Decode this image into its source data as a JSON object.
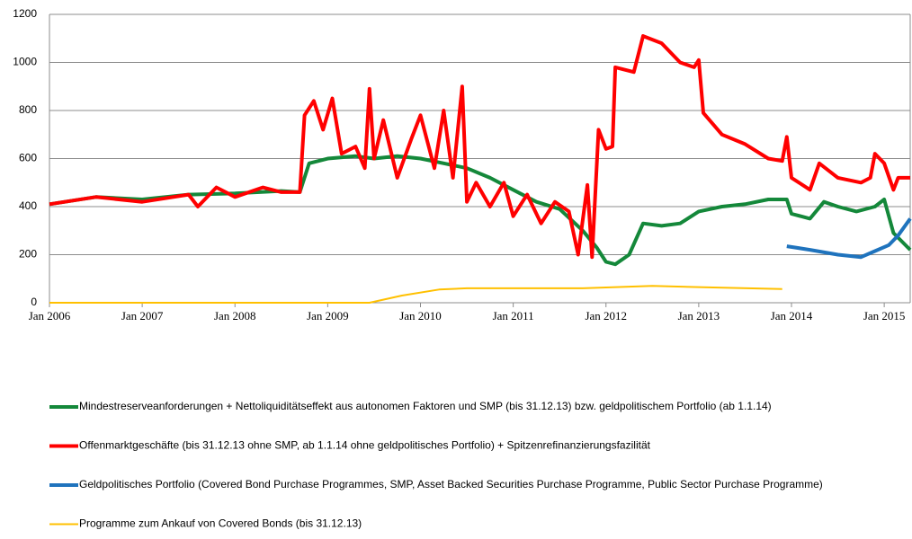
{
  "chart_data": {
    "type": "line",
    "xlim": [
      2006,
      2015.28
    ],
    "xticks": [
      {
        "value": 2006,
        "label": "Jan 2006"
      },
      {
        "value": 2007,
        "label": "Jan 2007"
      },
      {
        "value": 2008,
        "label": "Jan 2008"
      },
      {
        "value": 2009,
        "label": "Jan 2009"
      },
      {
        "value": 2010,
        "label": "Jan 2010"
      },
      {
        "value": 2011,
        "label": "Jan 2011"
      },
      {
        "value": 2012,
        "label": "Jan 2012"
      },
      {
        "value": 2013,
        "label": "Jan 2013"
      },
      {
        "value": 2014,
        "label": "Jan 2014"
      },
      {
        "value": 2015,
        "label": "Jan 2015"
      }
    ],
    "ylim": [
      0,
      1200
    ],
    "yticks": [
      0,
      200,
      400,
      600,
      800,
      1000,
      1200
    ],
    "grid": true,
    "series": [
      {
        "name": "Mindestreserveanforderungen + Nettoliquiditätseffekt aus autonomen Faktoren und SMP (bis 31.12.13) bzw. geldpolitischem Portfolio (ab 1.1.14)",
        "color": "#14883a",
        "x": [
          2006,
          2006.5,
          2007,
          2007.5,
          2008,
          2008.5,
          2008.7,
          2008.8,
          2009,
          2009.3,
          2009.5,
          2009.75,
          2010,
          2010.25,
          2010.5,
          2010.75,
          2011,
          2011.25,
          2011.5,
          2011.75,
          2011.9,
          2012,
          2012.1,
          2012.25,
          2012.4,
          2012.6,
          2012.8,
          2013,
          2013.25,
          2013.5,
          2013.75,
          2013.95,
          2014,
          2014.2,
          2014.35,
          2014.5,
          2014.7,
          2014.9,
          2015,
          2015.1,
          2015.28
        ],
        "values": [
          410,
          440,
          430,
          450,
          455,
          465,
          460,
          580,
          600,
          610,
          600,
          610,
          600,
          580,
          560,
          520,
          470,
          420,
          390,
          300,
          230,
          170,
          160,
          200,
          330,
          320,
          330,
          380,
          400,
          410,
          430,
          430,
          370,
          350,
          420,
          400,
          380,
          400,
          430,
          290,
          220
        ]
      },
      {
        "name": "Offenmarktgeschäfte (bis 31.12.13 ohne SMP, ab 1.1.14 ohne geldpolitisches Portfolio) + Spitzenrefinanzierungsfazilität",
        "color": "#ff0000",
        "x": [
          2006,
          2006.5,
          2007,
          2007.5,
          2007.6,
          2007.8,
          2008,
          2008.3,
          2008.5,
          2008.7,
          2008.75,
          2008.85,
          2008.95,
          2009.05,
          2009.15,
          2009.3,
          2009.4,
          2009.45,
          2009.5,
          2009.6,
          2009.75,
          2009.9,
          2010,
          2010.15,
          2010.25,
          2010.35,
          2010.45,
          2010.5,
          2010.6,
          2010.75,
          2010.9,
          2011,
          2011.15,
          2011.3,
          2011.45,
          2011.6,
          2011.7,
          2011.8,
          2011.85,
          2011.92,
          2012,
          2012.07,
          2012.1,
          2012.3,
          2012.4,
          2012.6,
          2012.8,
          2012.95,
          2013,
          2013.05,
          2013.25,
          2013.5,
          2013.75,
          2013.9,
          2013.95,
          2014,
          2014.2,
          2014.3,
          2014.5,
          2014.75,
          2014.85,
          2014.9,
          2015,
          2015.1,
          2015.15,
          2015.28
        ],
        "values": [
          410,
          440,
          420,
          450,
          400,
          480,
          440,
          480,
          460,
          460,
          780,
          840,
          720,
          850,
          620,
          650,
          560,
          890,
          600,
          760,
          520,
          680,
          780,
          560,
          800,
          520,
          900,
          420,
          500,
          400,
          500,
          360,
          450,
          330,
          420,
          380,
          200,
          490,
          190,
          720,
          640,
          650,
          980,
          960,
          1110,
          1080,
          1000,
          980,
          1010,
          790,
          700,
          660,
          600,
          590,
          690,
          520,
          470,
          580,
          520,
          500,
          520,
          620,
          580,
          470,
          520,
          520
        ]
      },
      {
        "name": "Geldpolitisches Portfolio (Covered Bond Purchase Programmes, SMP, Asset Backed Securities Purchase Programme, Public Sector Purchase Programme)",
        "color": "#1f73bd",
        "x": [
          2013.95,
          2014.2,
          2014.5,
          2014.75,
          2014.9,
          2015.05,
          2015.15,
          2015.28
        ],
        "values": [
          235,
          220,
          200,
          190,
          215,
          240,
          280,
          350
        ]
      },
      {
        "name": "Programme zum Ankauf von Covered Bonds (bis 31.12.13)",
        "color": "#ffc000",
        "x": [
          2006,
          2009.45,
          2009.8,
          2010.2,
          2010.5,
          2011,
          2011.75,
          2012.5,
          2013,
          2013.9
        ],
        "values": [
          0,
          0,
          30,
          55,
          60,
          60,
          60,
          70,
          65,
          57
        ]
      }
    ]
  }
}
